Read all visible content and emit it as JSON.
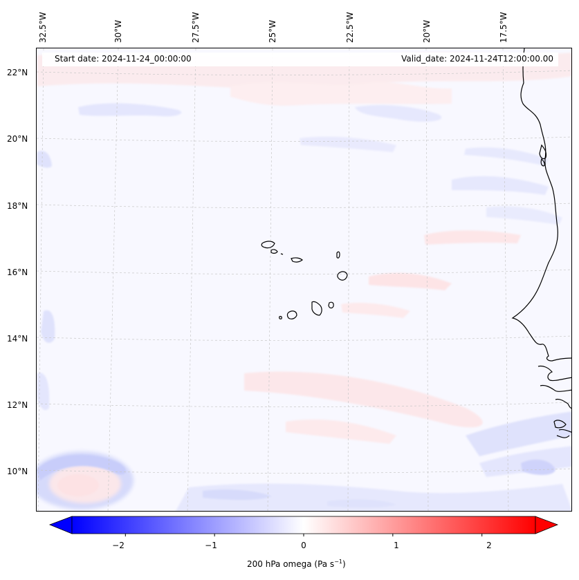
{
  "axes": {
    "lon_labels": [
      "32.5°W",
      "30°W",
      "27.5°W",
      "25°W",
      "22.5°W",
      "20°W",
      "17.5°W"
    ],
    "lat_labels": [
      "22°N",
      "20°N",
      "18°N",
      "16°N",
      "14°N",
      "12°N",
      "10°N"
    ]
  },
  "header": {
    "start_date": "Start date: 2024-11-24_00:00:00",
    "valid_date": "Valid_date: 2024-11-24T12:00:00.00"
  },
  "colorbar": {
    "ticks": [
      "−2",
      "−1",
      "0",
      "1",
      "2"
    ],
    "label": "200 hPa omega (Pa s",
    "label_sup": "−1",
    "label_end": ")",
    "min": -2.6,
    "max": 2.6,
    "low_color": "#0000ff",
    "mid_color": "#ffffff",
    "high_color": "#ff0000"
  }
}
